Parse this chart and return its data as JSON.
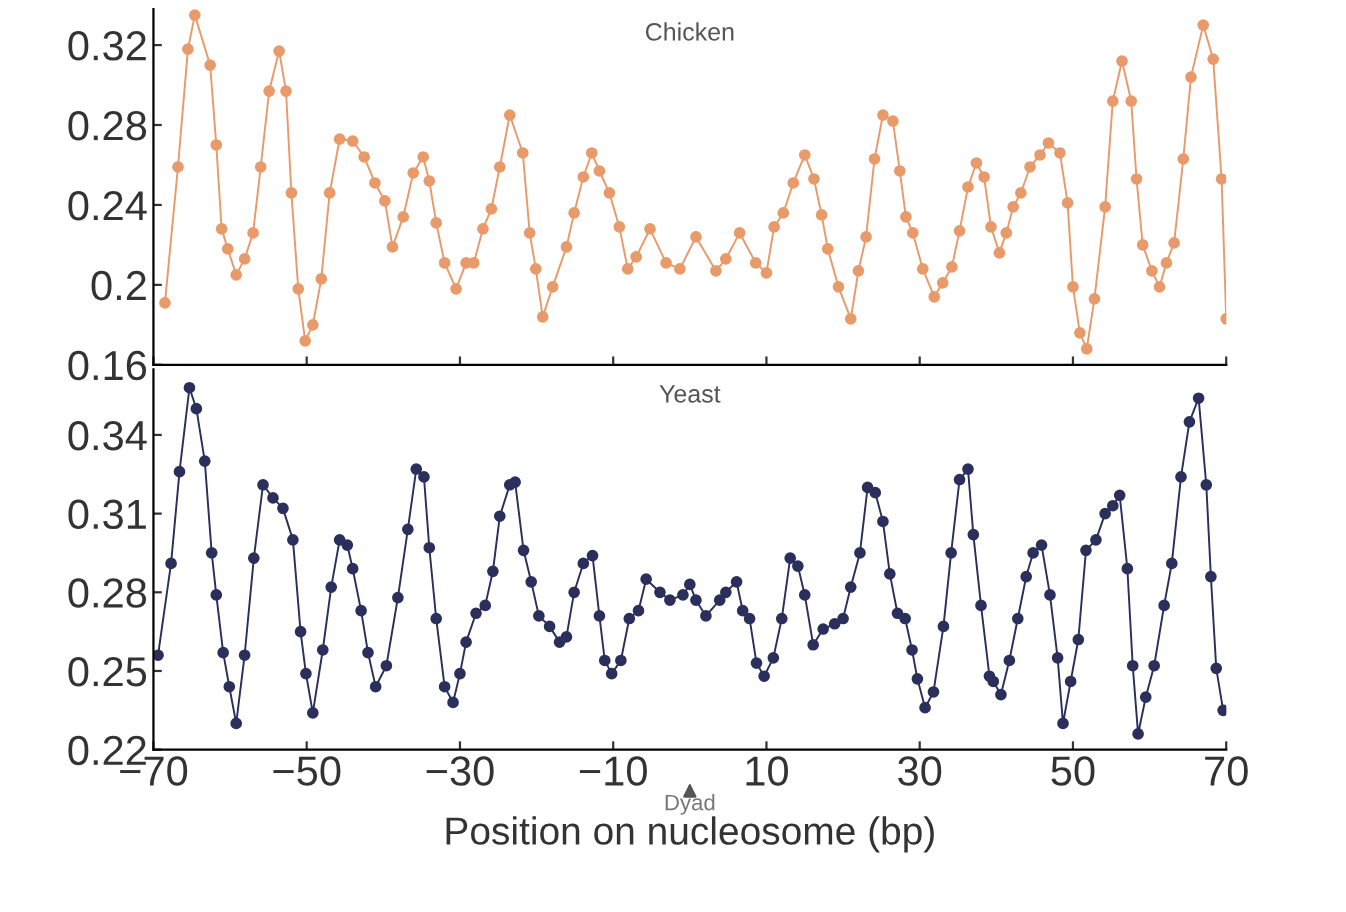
{
  "chart_data": [
    {
      "type": "line",
      "title": "Chicken",
      "xlim": [
        -70,
        70
      ],
      "xticks": [
        -70,
        -50,
        -30,
        -10,
        10,
        30,
        50,
        70
      ],
      "ylim": [
        0.16,
        0.338
      ],
      "yticks": [
        0.16,
        0.2,
        0.24,
        0.28,
        0.32
      ],
      "tick_labels": "y",
      "grid": false,
      "marker": "circle",
      "line_style": "solid",
      "series": [
        {
          "color": "#e89a6a",
          "x": [
            -68.5,
            -66.8,
            -65.5,
            -64.6,
            -62.6,
            -61.8,
            -61.1,
            -60.3,
            -59.2,
            -58.1,
            -57.0,
            -56.0,
            -54.9,
            -53.6,
            -52.7,
            -52.0,
            -51.1,
            -50.2,
            -49.2,
            -48.1,
            -47.0,
            -45.7,
            -44.0,
            -42.5,
            -41.1,
            -39.8,
            -38.8,
            -37.4,
            -36.1,
            -34.8,
            -34.0,
            -33.1,
            -32.0,
            -30.5,
            -29.2,
            -28.2,
            -27.0,
            -25.9,
            -24.8,
            -23.5,
            -21.8,
            -20.9,
            -20.1,
            -19.2,
            -17.9,
            -16.1,
            -15.1,
            -13.9,
            -12.8,
            -11.8,
            -10.5,
            -9.2,
            -8.1,
            -7.0,
            -5.2,
            -3.1,
            -1.3,
            0.8,
            3.4,
            4.7,
            6.5,
            8.6,
            10.0,
            11.0,
            12.2,
            13.5,
            15.0,
            16.2,
            17.2,
            18.0,
            19.4,
            21.0,
            22.0,
            23.0,
            24.1,
            25.2,
            26.5,
            27.4,
            28.2,
            29.1,
            30.4,
            31.9,
            33.0,
            34.2,
            35.2,
            36.3,
            37.4,
            38.4,
            39.3,
            40.4,
            41.3,
            42.2,
            43.2,
            44.4,
            45.7,
            46.8,
            48.3,
            49.3,
            50.0,
            50.9,
            51.8,
            52.8,
            54.2,
            55.2,
            56.4,
            57.6,
            58.3,
            59.1,
            60.3,
            61.3,
            62.2,
            63.2,
            64.4,
            65.4,
            67.0,
            68.3,
            69.4,
            70.0
          ],
          "values": [
            0.191,
            0.259,
            0.318,
            0.335,
            0.31,
            0.27,
            0.228,
            0.218,
            0.205,
            0.213,
            0.226,
            0.259,
            0.297,
            0.317,
            0.297,
            0.246,
            0.198,
            0.172,
            0.18,
            0.203,
            0.246,
            0.273,
            0.272,
            0.264,
            0.251,
            0.242,
            0.219,
            0.234,
            0.256,
            0.264,
            0.252,
            0.231,
            0.211,
            0.198,
            0.211,
            0.211,
            0.228,
            0.238,
            0.259,
            0.285,
            0.266,
            0.226,
            0.208,
            0.184,
            0.199,
            0.219,
            0.236,
            0.254,
            0.266,
            0.257,
            0.246,
            0.229,
            0.208,
            0.214,
            0.228,
            0.211,
            0.208,
            0.224,
            0.207,
            0.213,
            0.226,
            0.211,
            0.206,
            0.229,
            0.236,
            0.251,
            0.265,
            0.253,
            0.235,
            0.218,
            0.199,
            0.183,
            0.207,
            0.224,
            0.263,
            0.285,
            0.282,
            0.257,
            0.234,
            0.226,
            0.208,
            0.194,
            0.201,
            0.209,
            0.227,
            0.249,
            0.261,
            0.254,
            0.229,
            0.216,
            0.226,
            0.239,
            0.246,
            0.259,
            0.265,
            0.271,
            0.266,
            0.241,
            0.199,
            0.176,
            0.168,
            0.193,
            0.239,
            0.292,
            0.312,
            0.292,
            0.253,
            0.22,
            0.207,
            0.199,
            0.211,
            0.221,
            0.263,
            0.304,
            0.33,
            0.313,
            0.253,
            0.183
          ]
        }
      ]
    },
    {
      "type": "line",
      "title": "Yeast",
      "xlabel": "Position on nucleosome (bp)",
      "annotations": [
        "Dyad"
      ],
      "xlim": [
        -70,
        70
      ],
      "xticks": [
        -70,
        -50,
        -30,
        -10,
        10,
        30,
        50,
        70
      ],
      "ylim": [
        0.22,
        0.365
      ],
      "yticks": [
        0.22,
        0.25,
        0.28,
        0.31,
        0.34
      ],
      "grid": false,
      "marker": "circle",
      "line_style": "solid",
      "series": [
        {
          "color": "#2b2f5c",
          "x": [
            -69.4,
            -67.7,
            -66.6,
            -65.3,
            -64.4,
            -63.3,
            -62.4,
            -61.8,
            -60.9,
            -60.1,
            -59.2,
            -58.1,
            -56.9,
            -55.7,
            -54.4,
            -53.1,
            -51.8,
            -50.8,
            -50.1,
            -49.2,
            -47.9,
            -46.8,
            -45.7,
            -44.7,
            -44.0,
            -42.9,
            -42.0,
            -41.0,
            -39.6,
            -38.1,
            -36.8,
            -35.7,
            -34.7,
            -34.0,
            -33.1,
            -32.0,
            -30.9,
            -30.0,
            -29.2,
            -27.9,
            -26.7,
            -25.7,
            -24.8,
            -23.5,
            -22.8,
            -21.7,
            -20.7,
            -19.7,
            -18.3,
            -17.0,
            -16.1,
            -15.1,
            -13.9,
            -12.7,
            -11.8,
            -11.1,
            -10.2,
            -9.0,
            -7.9,
            -6.7,
            -5.7,
            -3.9,
            -2.6,
            -0.9,
            0.0,
            0.8,
            2.1,
            3.9,
            4.7,
            6.1,
            6.9,
            7.8,
            8.7,
            9.7,
            10.9,
            12.0,
            13.1,
            14.1,
            15.0,
            16.1,
            17.4,
            18.9,
            20.0,
            21.0,
            22.2,
            23.2,
            24.2,
            25.2,
            26.1,
            27.1,
            28.1,
            29.0,
            29.7,
            30.7,
            31.8,
            33.1,
            34.1,
            35.2,
            36.3,
            37.0,
            38.0,
            39.1,
            39.6,
            40.6,
            41.7,
            42.8,
            43.9,
            44.8,
            45.9,
            47.0,
            48.0,
            48.7,
            49.7,
            50.7,
            51.7,
            53.0,
            54.2,
            55.2,
            56.1,
            57.1,
            57.8,
            58.5,
            59.5,
            60.6,
            61.9,
            62.9,
            64.1,
            65.2,
            66.4,
            67.4,
            68.0,
            68.7,
            69.6
          ],
          "values": [
            0.256,
            0.291,
            0.326,
            0.358,
            0.35,
            0.33,
            0.295,
            0.279,
            0.257,
            0.244,
            0.23,
            0.256,
            0.293,
            0.321,
            0.316,
            0.312,
            0.3,
            0.265,
            0.249,
            0.234,
            0.258,
            0.282,
            0.3,
            0.298,
            0.289,
            0.273,
            0.257,
            0.244,
            0.252,
            0.278,
            0.304,
            0.327,
            0.324,
            0.297,
            0.27,
            0.244,
            0.238,
            0.249,
            0.261,
            0.272,
            0.275,
            0.288,
            0.309,
            0.321,
            0.322,
            0.296,
            0.284,
            0.271,
            0.267,
            0.261,
            0.263,
            0.28,
            0.291,
            0.294,
            0.271,
            0.254,
            0.249,
            0.254,
            0.27,
            0.273,
            0.285,
            0.28,
            0.277,
            0.279,
            0.283,
            0.277,
            0.271,
            0.277,
            0.28,
            0.284,
            0.273,
            0.27,
            0.253,
            0.248,
            0.255,
            0.27,
            0.293,
            0.29,
            0.279,
            0.26,
            0.266,
            0.268,
            0.27,
            0.282,
            0.295,
            0.32,
            0.318,
            0.307,
            0.287,
            0.272,
            0.27,
            0.258,
            0.247,
            0.236,
            0.242,
            0.267,
            0.295,
            0.323,
            0.327,
            0.302,
            0.275,
            0.248,
            0.246,
            0.241,
            0.254,
            0.27,
            0.286,
            0.295,
            0.298,
            0.279,
            0.255,
            0.23,
            0.246,
            0.262,
            0.296,
            0.3,
            0.31,
            0.313,
            0.317,
            0.289,
            0.252,
            0.226,
            0.24,
            0.252,
            0.275,
            0.291,
            0.324,
            0.345,
            0.354,
            0.321,
            0.286,
            0.251,
            0.235
          ]
        }
      ]
    }
  ]
}
